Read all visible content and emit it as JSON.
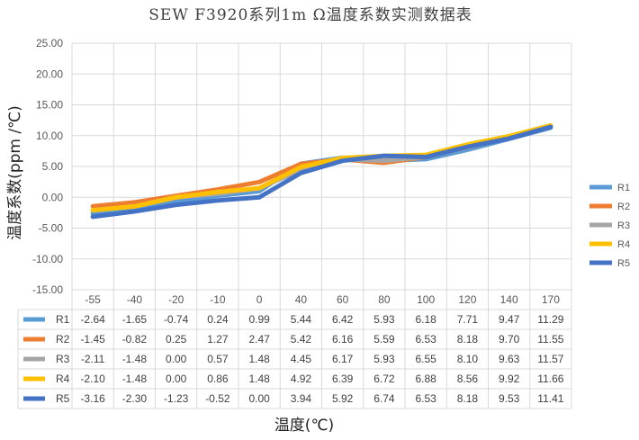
{
  "chart_data": {
    "type": "line",
    "title": "SEW F3920系列1m Ω温度系数实测数据表",
    "xlabel": "温度(℃)",
    "ylabel": "温度系数(ppm /℃)",
    "categories": [
      "-55",
      "-40",
      "-20",
      "-10",
      "0",
      "40",
      "60",
      "80",
      "100",
      "120",
      "140",
      "170"
    ],
    "ylim": [
      -15,
      25
    ],
    "yticks": [
      "25.00",
      "20.00",
      "15.00",
      "10.00",
      "5.00",
      "0.00",
      "-5.00",
      "-10.00",
      "-15.00"
    ],
    "grid": true,
    "legend_position": "right",
    "data_table": true,
    "series": [
      {
        "name": "R1",
        "color": "#5B9BD5",
        "values": [
          -2.64,
          -1.65,
          -0.74,
          0.24,
          0.99,
          5.44,
          6.42,
          5.93,
          6.18,
          7.71,
          9.47,
          11.29
        ],
        "labels": [
          "-2.64",
          "-1.65",
          "-0.74",
          "0.24",
          "0.99",
          "5.44",
          "6.42",
          "5.93",
          "6.18",
          "7.71",
          "9.47",
          "11.29"
        ]
      },
      {
        "name": "R2",
        "color": "#ED7D31",
        "values": [
          -1.45,
          -0.82,
          0.25,
          1.27,
          2.47,
          5.42,
          6.16,
          5.59,
          6.53,
          8.18,
          9.7,
          11.55
        ],
        "labels": [
          "-1.45",
          "-0.82",
          "0.25",
          "1.27",
          "2.47",
          "5.42",
          "6.16",
          "5.59",
          "6.53",
          "8.18",
          "9.70",
          "11.55"
        ]
      },
      {
        "name": "R3",
        "color": "#A5A5A5",
        "values": [
          -2.11,
          -1.48,
          0.0,
          0.57,
          1.48,
          4.45,
          6.17,
          5.93,
          6.55,
          8.1,
          9.63,
          11.57
        ],
        "labels": [
          "-2.11",
          "-1.48",
          "0.00",
          "0.57",
          "1.48",
          "4.45",
          "6.17",
          "5.93",
          "6.55",
          "8.10",
          "9.63",
          "11.57"
        ]
      },
      {
        "name": "R4",
        "color": "#FFC000",
        "values": [
          -2.1,
          -1.48,
          0.0,
          0.86,
          1.48,
          4.92,
          6.39,
          6.72,
          6.88,
          8.56,
          9.92,
          11.66
        ],
        "labels": [
          "-2.10",
          "-1.48",
          "0.00",
          "0.86",
          "1.48",
          "4.92",
          "6.39",
          "6.72",
          "6.88",
          "8.56",
          "9.92",
          "11.66"
        ]
      },
      {
        "name": "R5",
        "color": "#4472C4",
        "values": [
          -3.16,
          -2.3,
          -1.23,
          -0.52,
          0.0,
          3.94,
          5.92,
          6.74,
          6.53,
          8.18,
          9.53,
          11.41
        ],
        "labels": [
          "-3.16",
          "-2.30",
          "-1.23",
          "-0.52",
          "0.00",
          "3.94",
          "5.92",
          "6.74",
          "6.53",
          "8.18",
          "9.53",
          "11.41"
        ]
      }
    ]
  }
}
